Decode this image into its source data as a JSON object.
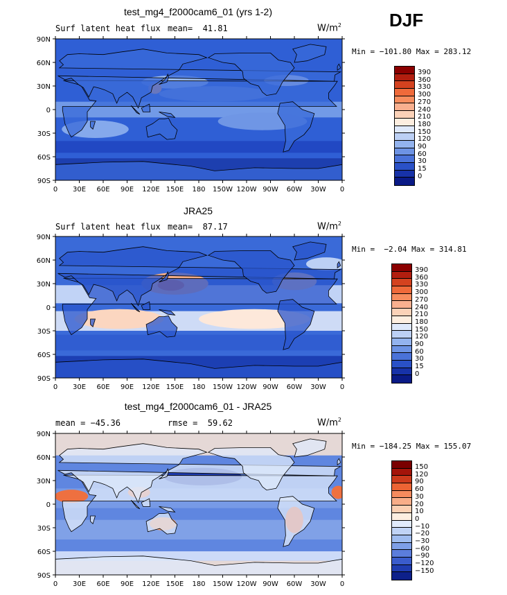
{
  "season": "DJF",
  "units_base": "W/m",
  "units_exp": "2",
  "panels": [
    {
      "title": "test_mg4_f2000cam6_01 (yrs 1-2)",
      "subtitle_left": "Surf latent heat flux",
      "subtitle_right": "mean=  41.81",
      "minmax": "Min = −101.80 Max = 283.12",
      "colorbar_labels": [
        "390",
        "360",
        "330",
        "300",
        "270",
        "240",
        "210",
        "180",
        "150",
        "120",
        "90",
        "60",
        "30",
        "15",
        "0"
      ]
    },
    {
      "title": "JRA25",
      "subtitle_left": "Surf latent heat flux",
      "subtitle_right": "mean=  87.17",
      "minmax": "Min =  −2.04 Max = 314.81",
      "colorbar_labels": [
        "390",
        "360",
        "330",
        "300",
        "270",
        "240",
        "210",
        "180",
        "150",
        "120",
        "90",
        "60",
        "30",
        "15",
        "0"
      ]
    },
    {
      "title": "test_mg4_f2000cam6_01 - JRA25",
      "subtitle_left": "mean = −45.36",
      "subtitle_right": "rmse =  59.62",
      "minmax": "Min = −184.25 Max = 155.07",
      "colorbar_labels": [
        "150",
        "120",
        "90",
        "60",
        "30",
        "20",
        "10",
        "0",
        "−10",
        "−20",
        "−30",
        "−60",
        "−90",
        "−120",
        "−150"
      ]
    }
  ],
  "axes": {
    "lon_ticks": [
      "0",
      "30E",
      "60E",
      "90E",
      "120E",
      "150E",
      "180",
      "150W",
      "120W",
      "90W",
      "60W",
      "30W",
      "0"
    ],
    "lat_ticks": [
      "90N",
      "60N",
      "30N",
      "0",
      "30S",
      "60S",
      "90S"
    ]
  },
  "colors": {
    "abs_scale": [
      "#8b0000",
      "#b21e0f",
      "#d4421f",
      "#ef6a3a",
      "#f78d5e",
      "#f9b08f",
      "#fbd2b8",
      "#fdeee0",
      "#dfe9fb",
      "#bcd0f5",
      "#93b3ee",
      "#6d93e4",
      "#4a72d9",
      "#2a51c7",
      "#1732a8",
      "#0a1a86"
    ],
    "diff_scale": [
      "#7a0000",
      "#a4140a",
      "#cc3a1c",
      "#ec6434",
      "#f58b5e",
      "#f8ad88",
      "#fbcfb2",
      "#fdeee0",
      "#e1eafb",
      "#c0d3f5",
      "#9fbcef",
      "#7e9fe7",
      "#5b7ddc",
      "#3a5ccc",
      "#1f3cb0",
      "#0d208a"
    ]
  },
  "chart_data": [
    {
      "type": "heatmap",
      "title": "test_mg4_f2000cam6_01 (yrs 1-2)",
      "variable": "Surf latent heat flux",
      "units": "W/m^2",
      "season": "DJF",
      "mean": 41.81,
      "min": -101.8,
      "max": 283.12,
      "contour_levels": [
        0,
        15,
        30,
        60,
        90,
        120,
        150,
        180,
        210,
        240,
        270,
        300,
        330,
        360,
        390
      ],
      "xlim": [
        0,
        360
      ],
      "ylim": [
        -90,
        90
      ],
      "x_ticks": [
        "0",
        "30E",
        "60E",
        "90E",
        "120E",
        "150E",
        "180",
        "150W",
        "120W",
        "90W",
        "60W",
        "30W",
        "0"
      ],
      "y_ticks": [
        "90N",
        "60N",
        "30N",
        "0",
        "30S",
        "60S",
        "90S"
      ]
    },
    {
      "type": "heatmap",
      "title": "JRA25",
      "variable": "Surf latent heat flux",
      "units": "W/m^2",
      "season": "DJF",
      "mean": 87.17,
      "min": -2.04,
      "max": 314.81,
      "contour_levels": [
        0,
        15,
        30,
        60,
        90,
        120,
        150,
        180,
        210,
        240,
        270,
        300,
        330,
        360,
        390
      ],
      "xlim": [
        0,
        360
      ],
      "ylim": [
        -90,
        90
      ],
      "x_ticks": [
        "0",
        "30E",
        "60E",
        "90E",
        "120E",
        "150E",
        "180",
        "150W",
        "120W",
        "90W",
        "60W",
        "30W",
        "0"
      ],
      "y_ticks": [
        "90N",
        "60N",
        "30N",
        "0",
        "30S",
        "60S",
        "90S"
      ]
    },
    {
      "type": "heatmap",
      "title": "test_mg4_f2000cam6_01 - JRA25",
      "units": "W/m^2",
      "season": "DJF",
      "mean": -45.36,
      "rmse": 59.62,
      "min": -184.25,
      "max": 155.07,
      "contour_levels": [
        -150,
        -120,
        -90,
        -60,
        -30,
        -20,
        -10,
        0,
        10,
        20,
        30,
        60,
        90,
        120,
        150
      ],
      "xlim": [
        0,
        360
      ],
      "ylim": [
        -90,
        90
      ],
      "x_ticks": [
        "0",
        "30E",
        "60E",
        "90E",
        "120E",
        "150E",
        "180",
        "150W",
        "120W",
        "90W",
        "60W",
        "30W",
        "0"
      ],
      "y_ticks": [
        "90N",
        "60N",
        "30N",
        "0",
        "30S",
        "60S",
        "90S"
      ]
    }
  ]
}
